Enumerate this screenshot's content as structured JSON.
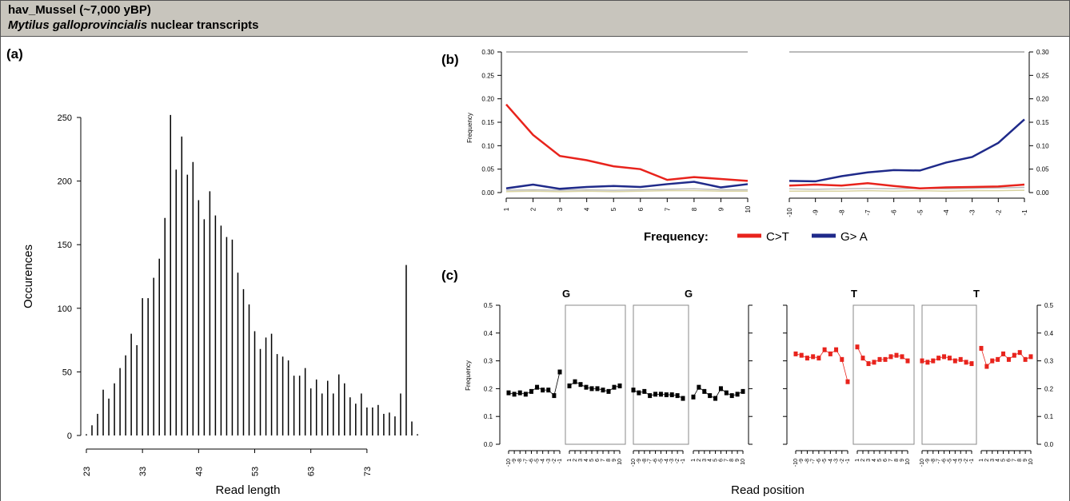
{
  "header": {
    "title": "hav_Mussel (~7,000 yBP)",
    "subtitle_species": "Mytilus galloprovincialis",
    "subtitle_rest": " nuclear transcripts"
  },
  "colors": {
    "ct": "#e8231c",
    "ga": "#1f2a8a",
    "header_bg": "#c8c5bd"
  },
  "chart_data": [
    {
      "panel": "(a)",
      "type": "bar",
      "xlabel": "Read length",
      "ylabel": "Occurences",
      "xlim": [
        23,
        82
      ],
      "ylim": [
        0,
        250
      ],
      "xticks": [
        23,
        33,
        43,
        53,
        63,
        73
      ],
      "yticks": [
        0,
        50,
        100,
        150,
        200,
        250
      ],
      "x": [
        23,
        24,
        25,
        26,
        27,
        28,
        29,
        30,
        31,
        32,
        33,
        34,
        35,
        36,
        37,
        38,
        39,
        40,
        41,
        42,
        43,
        44,
        45,
        46,
        47,
        48,
        49,
        50,
        51,
        52,
        53,
        54,
        55,
        56,
        57,
        58,
        59,
        60,
        61,
        62,
        63,
        64,
        65,
        66,
        67,
        68,
        69,
        70,
        71,
        72,
        73,
        74,
        75,
        76,
        77,
        78,
        79,
        80,
        81,
        82
      ],
      "values": [
        1,
        8,
        17,
        36,
        29,
        41,
        53,
        63,
        80,
        71,
        108,
        108,
        124,
        139,
        171,
        252,
        209,
        235,
        205,
        215,
        185,
        170,
        192,
        173,
        165,
        156,
        154,
        128,
        115,
        103,
        82,
        68,
        77,
        80,
        64,
        62,
        59,
        47,
        47,
        53,
        37,
        44,
        33,
        43,
        33,
        48,
        41,
        30,
        25,
        33,
        22,
        22,
        24,
        17,
        18,
        15,
        33,
        134,
        11,
        1
      ]
    },
    {
      "panel": "(b)",
      "type": "line",
      "ylabel": "Frequency",
      "ylim": [
        0,
        0.3
      ],
      "yticks": [
        "0.00",
        "0.05",
        "0.10",
        "0.15",
        "0.20",
        "0.25",
        "0.30"
      ],
      "x_left": [
        1,
        2,
        3,
        4,
        5,
        6,
        7,
        8,
        9,
        10
      ],
      "x_right": [
        -10,
        -9,
        -8,
        -7,
        -6,
        -5,
        -4,
        -3,
        -2,
        -1
      ],
      "legend_title": "Frequency:",
      "series": [
        {
          "name": "C>T",
          "left": [
            0.188,
            0.123,
            0.078,
            0.069,
            0.056,
            0.05,
            0.027,
            0.033,
            0.029,
            0.025
          ],
          "right": [
            0.015,
            0.017,
            0.015,
            0.02,
            0.014,
            0.009,
            0.011,
            0.012,
            0.013,
            0.017
          ]
        },
        {
          "name": "G> A",
          "left": [
            0.009,
            0.017,
            0.008,
            0.012,
            0.014,
            0.012,
            0.018,
            0.023,
            0.011,
            0.018
          ],
          "right": [
            0.025,
            0.024,
            0.035,
            0.043,
            0.048,
            0.047,
            0.064,
            0.076,
            0.106,
            0.156
          ]
        }
      ],
      "background_left": [
        [
          0.005,
          0.006,
          0.005,
          0.006,
          0.005,
          0.006,
          0.007,
          0.008,
          0.006,
          0.006
        ],
        [
          0.002,
          0.003,
          0.002,
          0.003,
          0.002,
          0.003,
          0.004,
          0.004,
          0.003,
          0.003
        ]
      ],
      "background_right": [
        [
          0.008,
          0.007,
          0.008,
          0.009,
          0.008,
          0.009,
          0.008,
          0.009,
          0.01,
          0.011
        ],
        [
          0.003,
          0.003,
          0.003,
          0.004,
          0.003,
          0.004,
          0.003,
          0.004,
          0.004,
          0.005
        ]
      ]
    },
    {
      "panel": "(c)",
      "type": "scatter",
      "ylabel": "Frequency",
      "xlabel": "Read position",
      "ylim": [
        0,
        0.5
      ],
      "yticks": [
        "0.0",
        "0.1",
        "0.2",
        "0.3",
        "0.4",
        "0.5"
      ],
      "ticks_out": [
        "-10",
        "-9",
        "-8",
        "-7",
        "-6",
        "-5",
        "-4",
        "-3",
        "-2",
        "-1"
      ],
      "ticks_in": [
        "1",
        "2",
        "3",
        "4",
        "5",
        "6",
        "7",
        "8",
        "9",
        "10"
      ],
      "groups": [
        {
          "label": "G",
          "color": "black",
          "left5": [
            0.185,
            0.18,
            0.185,
            0.18,
            0.19,
            0.205,
            0.195,
            0.195,
            0.175,
            0.26
          ],
          "right5": [
            0.21,
            0.225,
            0.215,
            0.205,
            0.2,
            0.2,
            0.195,
            0.19,
            0.205,
            0.21
          ]
        },
        {
          "label": "G",
          "color": "black",
          "left3": [
            0.195,
            0.185,
            0.19,
            0.175,
            0.18,
            0.18,
            0.178,
            0.178,
            0.175,
            0.165
          ],
          "right3": [
            0.17,
            0.205,
            0.19,
            0.175,
            0.165,
            0.2,
            0.185,
            0.175,
            0.18,
            0.19
          ]
        },
        {
          "label": "T",
          "color": "red",
          "left5": [
            0.325,
            0.32,
            0.31,
            0.315,
            0.31,
            0.34,
            0.325,
            0.34,
            0.305,
            0.225
          ],
          "right5": [
            0.35,
            0.31,
            0.29,
            0.295,
            0.305,
            0.305,
            0.315,
            0.32,
            0.315,
            0.3
          ]
        },
        {
          "label": "T",
          "color": "red",
          "left3": [
            0.3,
            0.295,
            0.3,
            0.31,
            0.315,
            0.31,
            0.3,
            0.305,
            0.295,
            0.29
          ],
          "right3": [
            0.345,
            0.28,
            0.3,
            0.305,
            0.325,
            0.305,
            0.32,
            0.33,
            0.305,
            0.315
          ]
        }
      ]
    }
  ],
  "panel_labels": {
    "a": "(a)",
    "b": "(b)",
    "c": "(c)"
  }
}
